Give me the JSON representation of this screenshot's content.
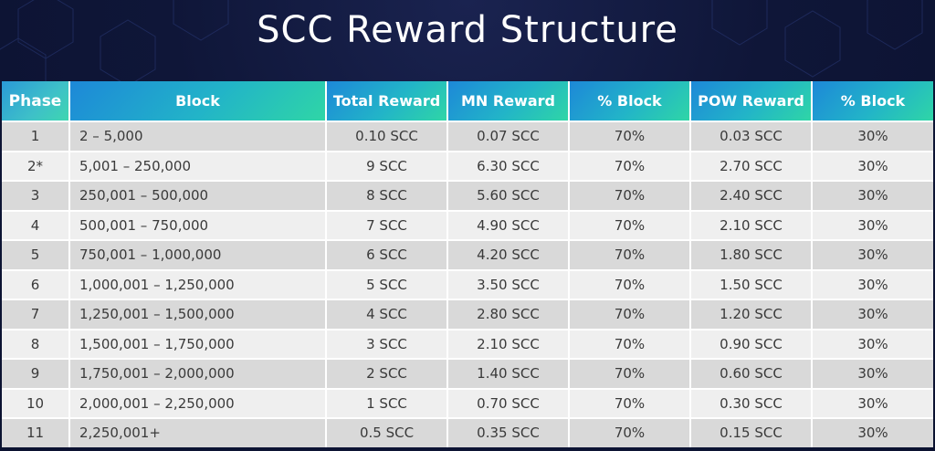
{
  "title": "SCC Reward Structure",
  "table": {
    "columns": [
      "Phase",
      "Block",
      "Total Reward",
      "MN Reward",
      "% Block",
      "POW Reward",
      "% Block"
    ],
    "rows": [
      [
        "1",
        "2 – 5,000",
        "0.10 SCC",
        "0.07 SCC",
        "70%",
        "0.03 SCC",
        "30%"
      ],
      [
        "2*",
        "5,001 – 250,000",
        "9 SCC",
        "6.30 SCC",
        "70%",
        "2.70 SCC",
        "30%"
      ],
      [
        "3",
        "250,001 – 500,000",
        "8 SCC",
        "5.60 SCC",
        "70%",
        "2.40 SCC",
        "30%"
      ],
      [
        "4",
        "500,001 – 750,000",
        "7 SCC",
        "4.90 SCC",
        "70%",
        "2.10 SCC",
        "30%"
      ],
      [
        "5",
        "750,001 – 1,000,000",
        "6 SCC",
        "4.20 SCC",
        "70%",
        "1.80 SCC",
        "30%"
      ],
      [
        "6",
        "1,000,001 – 1,250,000",
        "5 SCC",
        "3.50 SCC",
        "70%",
        "1.50 SCC",
        "30%"
      ],
      [
        "7",
        "1,250,001 – 1,500,000",
        "4 SCC",
        "2.80 SCC",
        "70%",
        "1.20 SCC",
        "30%"
      ],
      [
        "8",
        "1,500,001 – 1,750,000",
        "3 SCC",
        "2.10 SCC",
        "70%",
        "0.90 SCC",
        "30%"
      ],
      [
        "9",
        "1,750,001 – 2,000,000",
        "2 SCC",
        "1.40 SCC",
        "70%",
        "0.60 SCC",
        "30%"
      ],
      [
        "10",
        "2,000,001 – 2,250,000",
        "1 SCC",
        "0.70 SCC",
        "70%",
        "0.30 SCC",
        "30%"
      ],
      [
        "11",
        "2,250,001+",
        "0.5 SCC",
        "0.35 SCC",
        "70%",
        "0.15 SCC",
        "30%"
      ]
    ]
  },
  "colors": {
    "background": "#0d1433",
    "header_gradient_start": "#1d88d8",
    "header_gradient_end": "#2fd6a6",
    "row_odd": "#d9d9d9",
    "row_even": "#efefef",
    "title_text": "#ffffff"
  }
}
